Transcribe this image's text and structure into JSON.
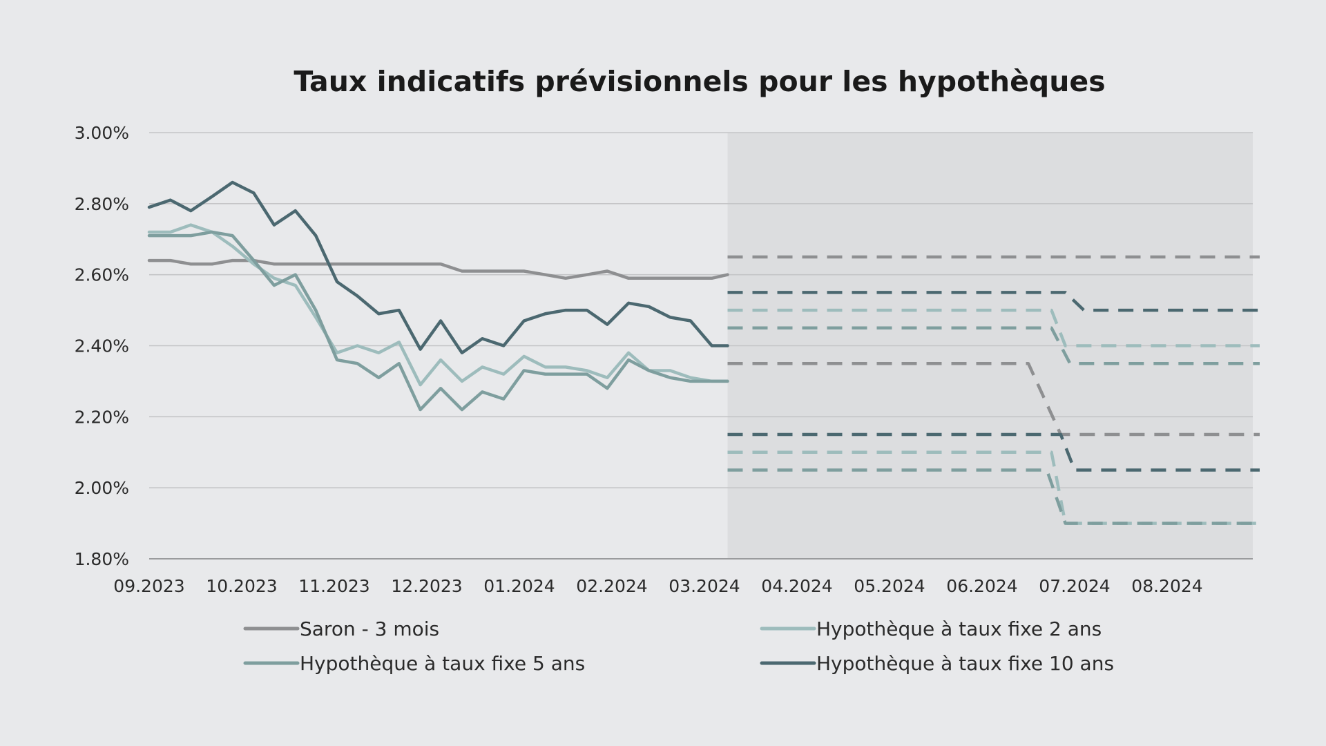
{
  "chart_data": {
    "type": "line",
    "title": "Taux indicatifs prévisionnels pour les hypothèques",
    "xlabel": "",
    "ylabel": "",
    "ylim": [
      1.8,
      3.0
    ],
    "y_ticks": [
      "3.00%",
      "2.80%",
      "2.60%",
      "2.40%",
      "2.20%",
      "2.00%",
      "1.80%"
    ],
    "x_ticks": [
      "09.2023",
      "10.2023",
      "11.2023",
      "12.2023",
      "01.2024",
      "02.2024",
      "03.2024",
      "04.2024",
      "05.2024",
      "06.2024",
      "07.2024",
      "08.2024"
    ],
    "forecast_region": {
      "from": 6.25,
      "to": 12.0,
      "color": "#dcdddf"
    },
    "grid": true,
    "legend_position": "bottom",
    "series": [
      {
        "name": "Saron - 3 mois",
        "color": "#8e8f91",
        "x": [
          0,
          0.23,
          0.45,
          0.68,
          0.9,
          1.13,
          1.35,
          1.58,
          1.8,
          2.03,
          2.25,
          2.48,
          2.7,
          2.93,
          3.15,
          3.38,
          3.6,
          3.83,
          4.05,
          4.28,
          4.5,
          4.73,
          4.95,
          5.18,
          5.4,
          5.63,
          5.85,
          6.08,
          6.25
        ],
        "values": [
          2.64,
          2.64,
          2.63,
          2.63,
          2.64,
          2.64,
          2.63,
          2.63,
          2.63,
          2.63,
          2.63,
          2.63,
          2.63,
          2.63,
          2.63,
          2.61,
          2.61,
          2.61,
          2.61,
          2.6,
          2.59,
          2.6,
          2.61,
          2.59,
          2.59,
          2.59,
          2.59,
          2.59,
          2.6
        ]
      },
      {
        "name": "Hypothèque à taux fixe 2 ans",
        "color": "#9dbcbc",
        "x": [
          0,
          0.23,
          0.45,
          0.68,
          0.9,
          1.13,
          1.35,
          1.58,
          1.8,
          2.03,
          2.25,
          2.48,
          2.7,
          2.93,
          3.15,
          3.38,
          3.6,
          3.83,
          4.05,
          4.28,
          4.5,
          4.73,
          4.95,
          5.18,
          5.4,
          5.63,
          5.85,
          6.08,
          6.25
        ],
        "values": [
          2.72,
          2.72,
          2.74,
          2.72,
          2.68,
          2.63,
          2.59,
          2.57,
          2.48,
          2.38,
          2.4,
          2.38,
          2.41,
          2.29,
          2.36,
          2.3,
          2.34,
          2.32,
          2.37,
          2.34,
          2.34,
          2.33,
          2.31,
          2.38,
          2.33,
          2.33,
          2.31,
          2.3,
          2.3
        ]
      },
      {
        "name": "Hypothèque à taux fixe 5 ans",
        "color": "#7e9e9e",
        "x": [
          0,
          0.23,
          0.45,
          0.68,
          0.9,
          1.13,
          1.35,
          1.58,
          1.8,
          2.03,
          2.25,
          2.48,
          2.7,
          2.93,
          3.15,
          3.38,
          3.6,
          3.83,
          4.05,
          4.28,
          4.5,
          4.73,
          4.95,
          5.18,
          5.4,
          5.63,
          5.85,
          6.08,
          6.25
        ],
        "values": [
          2.71,
          2.71,
          2.71,
          2.72,
          2.71,
          2.64,
          2.57,
          2.6,
          2.5,
          2.36,
          2.35,
          2.31,
          2.35,
          2.22,
          2.28,
          2.22,
          2.27,
          2.25,
          2.33,
          2.32,
          2.32,
          2.32,
          2.28,
          2.36,
          2.33,
          2.31,
          2.3,
          2.3,
          2.3
        ]
      },
      {
        "name": "Hypothèque à taux fixe 10 ans",
        "color": "#4b6870",
        "x": [
          0,
          0.23,
          0.45,
          0.68,
          0.9,
          1.13,
          1.35,
          1.58,
          1.8,
          2.03,
          2.25,
          2.48,
          2.7,
          2.93,
          3.15,
          3.38,
          3.6,
          3.83,
          4.05,
          4.28,
          4.5,
          4.73,
          4.95,
          5.18,
          5.4,
          5.63,
          5.85,
          6.08,
          6.25
        ],
        "values": [
          2.79,
          2.81,
          2.78,
          2.82,
          2.86,
          2.83,
          2.74,
          2.78,
          2.71,
          2.58,
          2.54,
          2.49,
          2.5,
          2.39,
          2.47,
          2.38,
          2.42,
          2.4,
          2.47,
          2.49,
          2.5,
          2.5,
          2.46,
          2.52,
          2.51,
          2.48,
          2.47,
          2.4,
          2.4
        ]
      }
    ],
    "forecasts": [
      {
        "series": "Saron - 3 mois",
        "color": "#8e8f91",
        "x": [
          6.25,
          9.5,
          9.85,
          12.0
        ],
        "values": [
          2.35,
          2.35,
          2.15,
          2.15
        ]
      },
      {
        "series": "Saron - 3 mois",
        "color": "#8e8f91",
        "x": [
          6.25,
          12.0
        ],
        "values": [
          2.65,
          2.65
        ]
      },
      {
        "series": "Hypothèque à taux fixe 10 ans",
        "color": "#4b6870",
        "x": [
          6.25,
          9.9,
          10.1,
          12.0
        ],
        "values": [
          2.55,
          2.55,
          2.5,
          2.5
        ]
      },
      {
        "series": "Hypothèque à taux fixe 10 ans",
        "color": "#4b6870",
        "x": [
          6.25,
          9.85,
          10.0,
          12.0
        ],
        "values": [
          2.15,
          2.15,
          2.05,
          2.05
        ]
      },
      {
        "series": "Hypothèque à taux fixe 2 ans",
        "color": "#9dbcbc",
        "x": [
          6.25,
          9.75,
          9.9,
          12.0
        ],
        "values": [
          2.5,
          2.5,
          2.4,
          2.4
        ]
      },
      {
        "series": "Hypothèque à taux fixe 2 ans",
        "color": "#9dbcbc",
        "x": [
          6.25,
          9.75,
          9.9,
          12.0
        ],
        "values": [
          2.1,
          2.1,
          1.9,
          1.9
        ]
      },
      {
        "series": "Hypothèque à taux fixe 5 ans",
        "color": "#7e9e9e",
        "x": [
          6.25,
          9.75,
          9.95,
          12.0
        ],
        "values": [
          2.45,
          2.45,
          2.35,
          2.35
        ]
      },
      {
        "series": "Hypothèque à taux fixe 5 ans",
        "color": "#7e9e9e",
        "x": [
          6.25,
          9.7,
          9.9,
          12.0
        ],
        "values": [
          2.05,
          2.05,
          1.9,
          1.9
        ]
      }
    ]
  }
}
